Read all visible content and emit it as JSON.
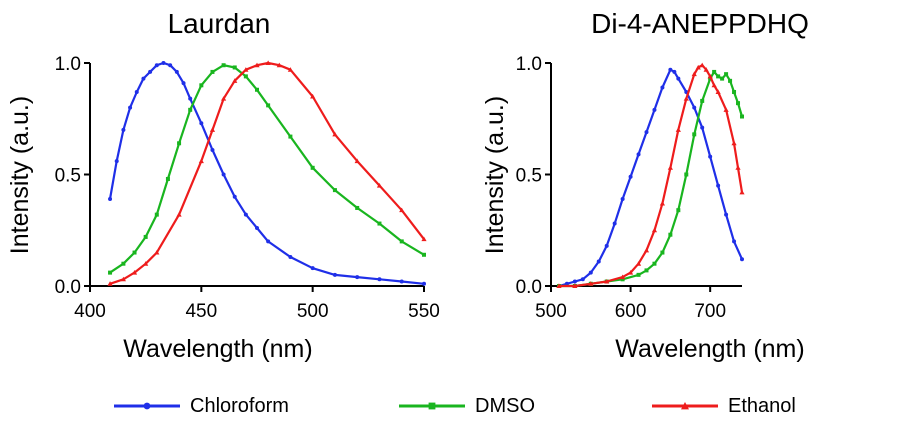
{
  "colors": {
    "chloroform": "#1f2fe8",
    "dmso": "#19b51f",
    "ethanol": "#ee1c1c",
    "axis": "#000000"
  },
  "legend": [
    {
      "label": "Chloroform",
      "color": "#1f2fe8",
      "marker": "circle"
    },
    {
      "label": "DMSO",
      "color": "#19b51f",
      "marker": "square"
    },
    {
      "label": "Ethanol",
      "color": "#ee1c1c",
      "marker": "triangle"
    }
  ],
  "chart_data": [
    {
      "type": "line",
      "title": "Laurdan",
      "xlabel": "Wavelength (nm)",
      "ylabel": "Intensity (a.u.)",
      "xlim": [
        400,
        550
      ],
      "ylim": [
        0,
        1
      ],
      "xticks": [
        400,
        450,
        500,
        550
      ],
      "xtick_labels": [
        "400",
        "450",
        "500",
        "550"
      ],
      "yticks": [
        0,
        0.5,
        1
      ],
      "ytick_labels": [
        "0.0",
        "0.5",
        "1.0"
      ],
      "grid": false,
      "series": [
        {
          "name": "Chloroform",
          "x": [
            409,
            412,
            415,
            418,
            421,
            424,
            427,
            430,
            433,
            436,
            439,
            442,
            445,
            450,
            455,
            460,
            465,
            470,
            475,
            480,
            490,
            500,
            510,
            520,
            530,
            540,
            550
          ],
          "y": [
            0.39,
            0.56,
            0.7,
            0.8,
            0.87,
            0.93,
            0.96,
            0.99,
            1.0,
            0.99,
            0.96,
            0.91,
            0.84,
            0.73,
            0.61,
            0.5,
            0.4,
            0.32,
            0.26,
            0.2,
            0.13,
            0.08,
            0.05,
            0.04,
            0.03,
            0.02,
            0.01
          ]
        },
        {
          "name": "DMSO",
          "x": [
            409,
            415,
            420,
            425,
            430,
            435,
            440,
            445,
            450,
            455,
            460,
            465,
            470,
            475,
            480,
            490,
            500,
            510,
            520,
            530,
            540,
            550
          ],
          "y": [
            0.06,
            0.1,
            0.15,
            0.22,
            0.32,
            0.48,
            0.64,
            0.79,
            0.9,
            0.96,
            0.99,
            0.98,
            0.94,
            0.88,
            0.81,
            0.67,
            0.53,
            0.43,
            0.35,
            0.28,
            0.2,
            0.14
          ]
        },
        {
          "name": "Ethanol",
          "x": [
            409,
            415,
            420,
            425,
            430,
            440,
            450,
            455,
            460,
            465,
            470,
            475,
            480,
            485,
            490,
            500,
            510,
            520,
            530,
            540,
            550
          ],
          "y": [
            0.01,
            0.03,
            0.06,
            0.1,
            0.15,
            0.32,
            0.56,
            0.7,
            0.84,
            0.92,
            0.97,
            0.99,
            1.0,
            0.99,
            0.97,
            0.85,
            0.68,
            0.56,
            0.45,
            0.34,
            0.21
          ]
        }
      ]
    },
    {
      "type": "line",
      "title": "Di-4-ANEPPDHQ",
      "xlabel": "Wavelength (nm)",
      "ylabel": "Intensity (a.u.)",
      "xlim": [
        500,
        740
      ],
      "ylim": [
        0,
        1
      ],
      "xticks": [
        500,
        600,
        700
      ],
      "xtick_labels": [
        "500",
        "600",
        "700"
      ],
      "yticks": [
        0,
        0.5,
        1
      ],
      "ytick_labels": [
        "0.0",
        "0.5",
        "1.0"
      ],
      "grid": false,
      "series": [
        {
          "name": "Chloroform",
          "x": [
            510,
            520,
            530,
            540,
            550,
            560,
            570,
            580,
            590,
            600,
            610,
            620,
            630,
            640,
            650,
            655,
            660,
            670,
            680,
            690,
            700,
            710,
            720,
            730,
            740
          ],
          "y": [
            0.0,
            0.01,
            0.02,
            0.03,
            0.06,
            0.11,
            0.18,
            0.28,
            0.39,
            0.49,
            0.59,
            0.69,
            0.79,
            0.89,
            0.97,
            0.96,
            0.93,
            0.87,
            0.8,
            0.71,
            0.58,
            0.45,
            0.32,
            0.2,
            0.12
          ]
        },
        {
          "name": "DMSO",
          "x": [
            510,
            530,
            550,
            570,
            590,
            610,
            620,
            630,
            640,
            650,
            660,
            670,
            680,
            690,
            700,
            705,
            710,
            715,
            720,
            725,
            730,
            735,
            740
          ],
          "y": [
            0.0,
            0.0,
            0.01,
            0.02,
            0.03,
            0.05,
            0.07,
            0.1,
            0.15,
            0.23,
            0.34,
            0.5,
            0.68,
            0.83,
            0.93,
            0.96,
            0.94,
            0.93,
            0.95,
            0.92,
            0.87,
            0.82,
            0.76
          ]
        },
        {
          "name": "Ethanol",
          "x": [
            510,
            530,
            550,
            570,
            590,
            600,
            610,
            620,
            630,
            640,
            650,
            660,
            670,
            680,
            685,
            690,
            695,
            700,
            705,
            710,
            720,
            730,
            735,
            740
          ],
          "y": [
            0.0,
            0.0,
            0.01,
            0.02,
            0.04,
            0.06,
            0.1,
            0.16,
            0.25,
            0.37,
            0.53,
            0.7,
            0.84,
            0.95,
            0.98,
            0.99,
            0.97,
            0.94,
            0.9,
            0.87,
            0.79,
            0.64,
            0.53,
            0.42
          ]
        }
      ]
    }
  ]
}
